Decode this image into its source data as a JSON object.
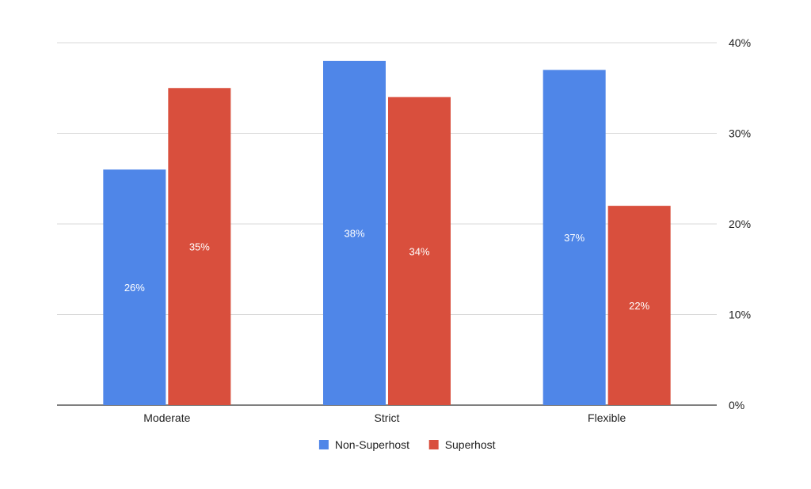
{
  "chart_data": {
    "type": "bar",
    "categories": [
      "Moderate",
      "Strict",
      "Flexible"
    ],
    "series": [
      {
        "name": "Non-Superhost",
        "values": [
          26,
          38,
          37
        ],
        "color": "#4f86e8"
      },
      {
        "name": "Superhost",
        "values": [
          35,
          34,
          22
        ],
        "color": "#d94f3d"
      }
    ],
    "data_labels": [
      [
        "26%",
        "38%",
        "37%"
      ],
      [
        "35%",
        "34%",
        "22%"
      ]
    ],
    "yaxis": {
      "position": "right",
      "ticks": [
        0,
        10,
        20,
        30,
        40
      ],
      "tick_labels": [
        "0%",
        "10%",
        "20%",
        "30%",
        "40%"
      ],
      "ylim": [
        0,
        40
      ]
    },
    "title": "",
    "xlabel": "",
    "ylabel": "",
    "grid": true,
    "legend_position": "bottom-center"
  }
}
